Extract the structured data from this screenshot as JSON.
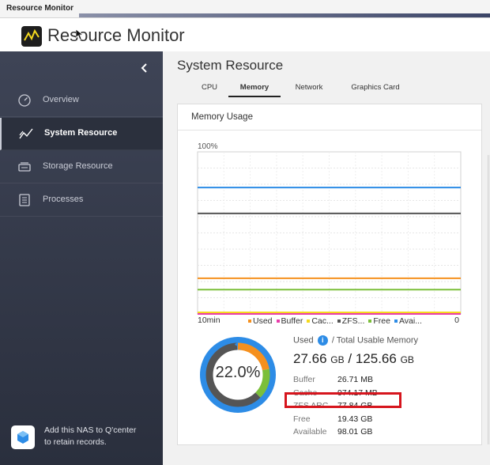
{
  "window": {
    "title": "Resource Monitor"
  },
  "app": {
    "name": "Resource Monitor"
  },
  "sidebar": {
    "items": [
      {
        "label": "Overview",
        "icon": "gauge-icon",
        "active": false
      },
      {
        "label": "System Resource",
        "icon": "line-chart-icon",
        "active": true
      },
      {
        "label": "Storage Resource",
        "icon": "storage-icon",
        "active": false
      },
      {
        "label": "Processes",
        "icon": "list-icon",
        "active": false
      }
    ],
    "qcenter": {
      "line1": "Add this NAS to Q'center",
      "line2": "to retain records."
    }
  },
  "main": {
    "title": "System Resource",
    "tabs": [
      {
        "label": "CPU",
        "active": false
      },
      {
        "label": "Memory",
        "active": true
      },
      {
        "label": "Network",
        "active": false
      },
      {
        "label": "Graphics Card",
        "active": false
      }
    ]
  },
  "memory_card": {
    "title": "Memory Usage",
    "used_label": "Used",
    "total_label": "/ Total Usable Memory",
    "used_value": "27.66",
    "used_unit": "GB",
    "total_sep": "/",
    "total_value": "125.66",
    "total_unit": "GB",
    "percent_used": "22.0%",
    "details": [
      {
        "key": "Buffer",
        "value": "26.71 MB"
      },
      {
        "key": "Cache",
        "value": "974.17 MB"
      },
      {
        "key": "ZFS ARC",
        "value": "77.84 GB"
      },
      {
        "key": "Free",
        "value": "19.43 GB"
      },
      {
        "key": "Available",
        "value": "98.01 GB"
      }
    ]
  },
  "colors": {
    "used": "#f5901e",
    "buffer": "#e83dab",
    "cache": "#f5d91e",
    "zfs": "#555555",
    "free": "#7bbf3a",
    "available": "#2d8ce6",
    "highlight": "#d6151d"
  },
  "chart_data": {
    "type": "line",
    "ylabel_top": "100%",
    "x_left": "10min",
    "x_right": "0",
    "ylim": [
      0,
      100
    ],
    "series": [
      {
        "name": "Used",
        "color": "#f5901e",
        "value": 22
      },
      {
        "name": "Buffer",
        "color": "#e83dab",
        "value": 0
      },
      {
        "name": "Cac...",
        "color": "#f5d91e",
        "value": 1
      },
      {
        "name": "ZFS...",
        "color": "#555555",
        "value": 62
      },
      {
        "name": "Free",
        "color": "#7bbf3a",
        "value": 15
      },
      {
        "name": "Avai...",
        "color": "#2d8ce6",
        "value": 78
      }
    ]
  },
  "donut_data": {
    "segments": [
      {
        "name": "Used",
        "color": "#f5901e",
        "value": 22
      },
      {
        "name": "Free",
        "color": "#7bbf3a",
        "value": 15.5
      },
      {
        "name": "ZFS ARC",
        "color": "#555555",
        "value": 62
      },
      {
        "name": "Available",
        "color": "#2d8ce6",
        "value": 0.5
      }
    ]
  }
}
